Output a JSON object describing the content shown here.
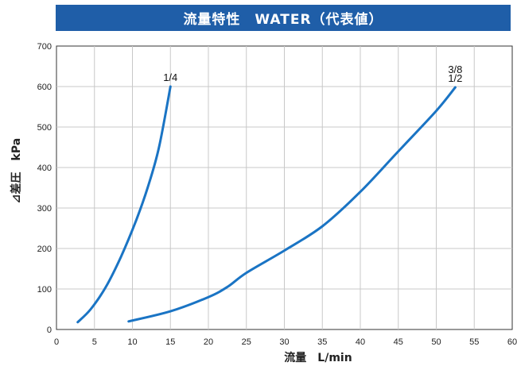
{
  "chart_data": {
    "type": "line",
    "title": "流量特性　WATER（代表値）",
    "xlabel": "流量　L/min",
    "ylabel": "⊿差圧　kPa",
    "xlim": [
      0,
      60
    ],
    "ylim": [
      0,
      700
    ],
    "x_ticks": [
      "0",
      "5",
      "10",
      "15",
      "20",
      "25",
      "30",
      "35",
      "40",
      "45",
      "50",
      "55",
      "60"
    ],
    "y_ticks": [
      "0",
      "100",
      "200",
      "300",
      "400",
      "500",
      "600",
      "700"
    ],
    "grid": true,
    "line_color": "#1a74c4",
    "series": [
      {
        "name": "1/4",
        "points": [
          [
            2.8,
            18
          ],
          [
            4.5,
            50
          ],
          [
            6.5,
            105
          ],
          [
            8.5,
            180
          ],
          [
            10.5,
            270
          ],
          [
            12,
            350
          ],
          [
            13.5,
            450
          ],
          [
            15,
            600
          ]
        ]
      },
      {
        "name": "3/8\n1/2",
        "label_lines": [
          "3/8",
          "1/2"
        ],
        "points": [
          [
            9.5,
            20
          ],
          [
            15,
            45
          ],
          [
            20,
            80
          ],
          [
            22.5,
            105
          ],
          [
            25,
            140
          ],
          [
            30,
            195
          ],
          [
            35,
            255
          ],
          [
            40,
            340
          ],
          [
            45,
            440
          ],
          [
            50,
            540
          ],
          [
            52.5,
            598
          ]
        ]
      }
    ]
  }
}
